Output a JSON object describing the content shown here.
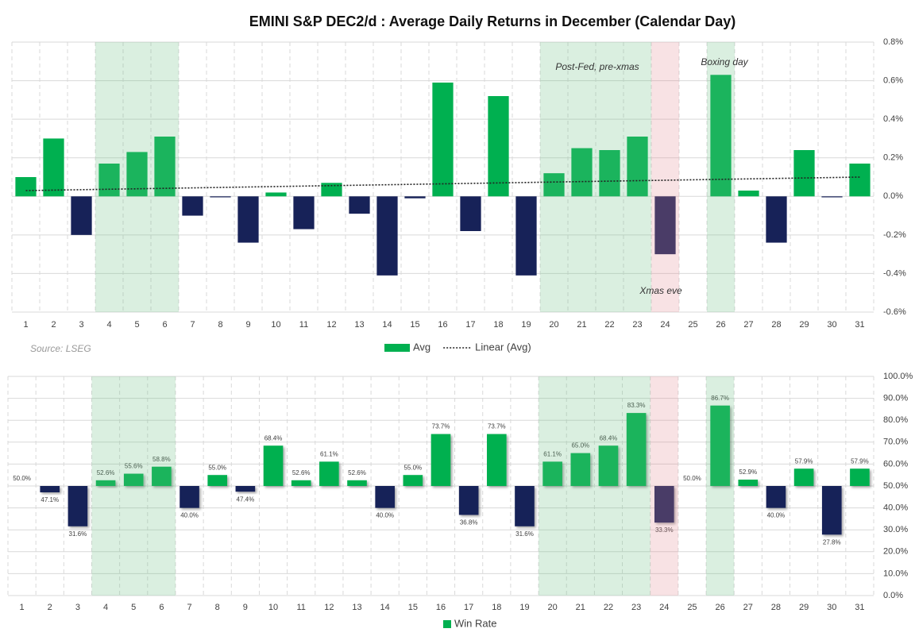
{
  "chart_data": [
    {
      "type": "bar",
      "title": "EMINI S&P DEC2/d : Average Daily Returns in December (Calendar Day)",
      "source": "Source: LSEG",
      "categories": [
        "1",
        "2",
        "3",
        "4",
        "5",
        "6",
        "7",
        "8",
        "9",
        "10",
        "11",
        "12",
        "13",
        "14",
        "15",
        "16",
        "17",
        "18",
        "19",
        "20",
        "21",
        "22",
        "23",
        "24",
        "25",
        "26",
        "27",
        "28",
        "29",
        "30",
        "31"
      ],
      "series": [
        {
          "name": "Avg",
          "color": "#00b050",
          "negative_color": "#172258",
          "values": [
            0.1,
            0.3,
            -0.2,
            0.17,
            0.23,
            0.31,
            -0.1,
            -0.005,
            -0.24,
            0.02,
            -0.17,
            0.07,
            -0.09,
            -0.41,
            -0.01,
            0.59,
            -0.18,
            0.52,
            -0.41,
            0.12,
            0.25,
            0.24,
            0.31,
            -0.3,
            0,
            0.63,
            0.03,
            -0.24,
            0.24,
            -0.005,
            0.17
          ]
        }
      ],
      "trend": {
        "name": "Linear (Avg)",
        "color": "#222222",
        "x": [
          1,
          31
        ],
        "values": [
          0.03,
          0.1
        ]
      },
      "highlights": [
        {
          "from": 4,
          "to": 6,
          "color": "#6dbf85"
        },
        {
          "from": 20,
          "to": 23,
          "color": "#6dbf85"
        },
        {
          "from": 26,
          "to": 26,
          "color": "#6dbf85"
        },
        {
          "from": 24,
          "to": 24,
          "color": "#e58a95"
        }
      ],
      "annotations": [
        "Post-Fed, pre-xmas",
        "Boxing day",
        "Xmas eve"
      ],
      "ylim": [
        -0.6,
        0.8
      ],
      "yticks": [
        {
          "value": -0.6,
          "label": "-0.6%"
        },
        {
          "value": -0.4,
          "label": "-0.4%"
        },
        {
          "value": -0.2,
          "label": "-0.2%"
        },
        {
          "value": 0,
          "label": "0.0%"
        },
        {
          "value": 0.2,
          "label": "0.2%"
        },
        {
          "value": 0.4,
          "label": "0.4%"
        },
        {
          "value": 0.6,
          "label": "0.6%"
        },
        {
          "value": 0.8,
          "label": "0.8%"
        }
      ],
      "grid": true
    },
    {
      "type": "bar",
      "categories": [
        "1",
        "2",
        "3",
        "4",
        "5",
        "6",
        "7",
        "8",
        "9",
        "10",
        "11",
        "12",
        "13",
        "14",
        "15",
        "16",
        "17",
        "18",
        "19",
        "20",
        "21",
        "22",
        "23",
        "24",
        "25",
        "26",
        "27",
        "28",
        "29",
        "30",
        "31"
      ],
      "baseline": 50,
      "series": [
        {
          "name": "Win Rate",
          "color": "#00b050",
          "negative_color": "#172258",
          "values": [
            50.0,
            47.1,
            31.6,
            52.6,
            55.6,
            58.8,
            40.0,
            55.0,
            47.4,
            68.4,
            52.6,
            61.1,
            52.6,
            40.0,
            55.0,
            73.7,
            36.8,
            73.7,
            31.6,
            61.1,
            65.0,
            68.4,
            83.3,
            33.3,
            50.0,
            86.7,
            52.9,
            40.0,
            57.9,
            27.8,
            57.9
          ],
          "value_labels": [
            "50.0%",
            "47.1%",
            "31.6%",
            "52.6%",
            "55.6%",
            "58.8%",
            "40.0%",
            "55.0%",
            "47.4%",
            "68.4%",
            "52.6%",
            "61.1%",
            "52.6%",
            "40.0%",
            "55.0%",
            "73.7%",
            "36.8%",
            "73.7%",
            "31.6%",
            "61.1%",
            "65.0%",
            "68.4%",
            "83.3%",
            "33.3%",
            "50.0%",
            "86.7%",
            "52.9%",
            "40.0%",
            "57.9%",
            "27.8%",
            "57.9%"
          ]
        }
      ],
      "highlights": [
        {
          "from": 4,
          "to": 6,
          "color": "#6dbf85"
        },
        {
          "from": 20,
          "to": 23,
          "color": "#6dbf85"
        },
        {
          "from": 26,
          "to": 26,
          "color": "#6dbf85"
        },
        {
          "from": 24,
          "to": 24,
          "color": "#e58a95"
        }
      ],
      "ylim": [
        0,
        100
      ],
      "yticks": [
        {
          "value": 0,
          "label": "0.0%"
        },
        {
          "value": 10,
          "label": "10.0%"
        },
        {
          "value": 20,
          "label": "20.0%"
        },
        {
          "value": 30,
          "label": "30.0%"
        },
        {
          "value": 40,
          "label": "40.0%"
        },
        {
          "value": 50,
          "label": "50.0%"
        },
        {
          "value": 60,
          "label": "60.0%"
        },
        {
          "value": 70,
          "label": "70.0%"
        },
        {
          "value": 80,
          "label": "80.0%"
        },
        {
          "value": 90,
          "label": "90.0%"
        },
        {
          "value": 100,
          "label": "100.0%"
        }
      ],
      "grid": true
    }
  ]
}
